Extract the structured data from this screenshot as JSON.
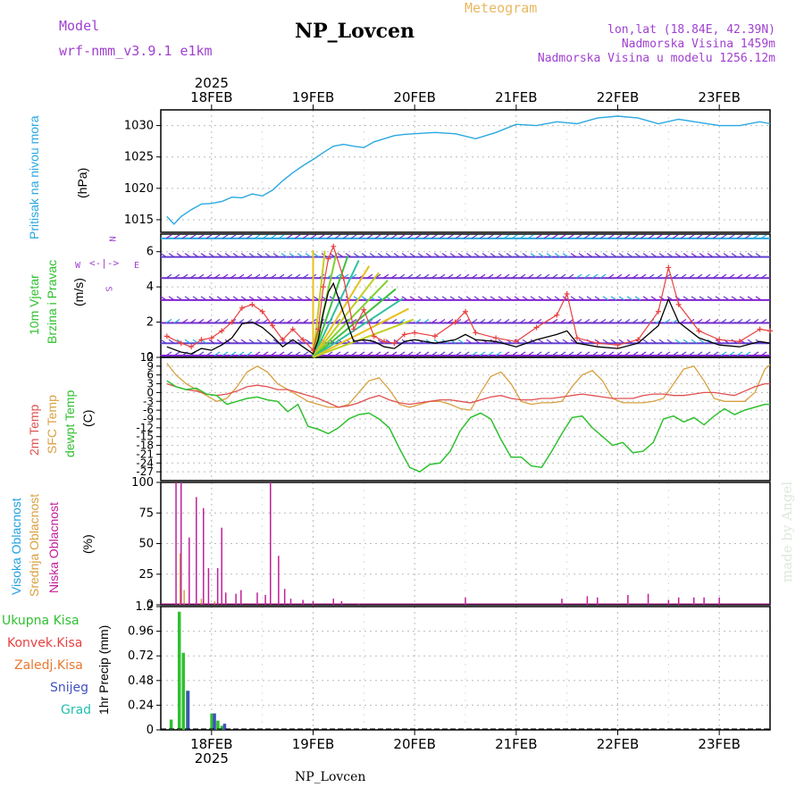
{
  "header": {
    "model_label": "Model",
    "model_name": "wrf-nmm_v3.9.1 e1km",
    "title": "NP_Lovcen",
    "subtitle": "Meteogram",
    "lonlat": "lon,lat (18.84E, 42.39N)",
    "altitude": "Nadmorska Visina 1459m",
    "model_altitude": "Nadmorska Visina u modelu 1256.12m",
    "footer": "NP_Lovcen",
    "credit": "made by Angel"
  },
  "colors": {
    "pressure": "#2aa8e0",
    "wind_speed": "#000000",
    "wind_gust": "#e84040",
    "temp_2m": "#e05050",
    "temp_sfc": "#d8a040",
    "dewpoint": "#30c030",
    "cloud_high": "#20a0e0",
    "cloud_mid": "#d8a040",
    "cloud_low": "#c0209a",
    "precip_total": "#30c030",
    "precip_conv": "#e84040",
    "precip_frozen": "#e87830",
    "precip_snow": "#4050c0",
    "precip_hail": "#20c0b0"
  },
  "time_axis": {
    "year": "2025",
    "days": [
      "18FEB",
      "19FEB",
      "20FEB",
      "21FEB",
      "22FEB",
      "23FEB"
    ]
  },
  "chart_data": [
    {
      "type": "line",
      "panel": "pressure",
      "ylabels": [
        "Pritisak na nivou mora",
        "(hPa)"
      ],
      "yticks": [
        "1015",
        "1020",
        "1025",
        "1030"
      ],
      "ylim": [
        1013,
        1032.5
      ],
      "x_days": [
        17.56,
        17.63,
        17.7,
        17.8,
        17.9,
        18.0,
        18.1,
        18.2,
        18.3,
        18.4,
        18.5,
        18.6,
        18.7,
        18.8,
        18.9,
        19.0,
        19.1,
        19.2,
        19.3,
        19.4,
        19.5,
        19.6,
        19.7,
        19.8,
        19.9,
        20.0,
        20.2,
        20.4,
        20.6,
        20.8,
        21.0,
        21.2,
        21.4,
        21.6,
        21.8,
        22.0,
        22.2,
        22.4,
        22.6,
        22.8,
        23.0,
        23.2,
        23.4,
        23.5
      ],
      "series": [
        {
          "values": [
            1015.5,
            1014.3,
            1015.5,
            1016.6,
            1017.5,
            1017.6,
            1017.9,
            1018.6,
            1018.5,
            1019.1,
            1018.8,
            1019.7,
            1021.2,
            1022.5,
            1023.6,
            1024.6,
            1025.7,
            1026.7,
            1027.0,
            1026.7,
            1026.5,
            1027.4,
            1027.9,
            1028.4,
            1028.6,
            1028.7,
            1028.9,
            1028.7,
            1027.9,
            1028.9,
            1030.2,
            1030.0,
            1030.6,
            1030.3,
            1031.2,
            1031.5,
            1031.2,
            1030.3,
            1031.0,
            1030.5,
            1030.0,
            1030.0,
            1030.6,
            1030.3
          ]
        }
      ],
      "grid": true
    },
    {
      "type": "line",
      "panel": "wind",
      "ylabels": [
        "10m Vjetar",
        "Brzina i Pravac",
        "(m/s)"
      ],
      "direction_legend": [
        "N",
        "W",
        "E",
        "S"
      ],
      "yticks": [
        "0",
        "2",
        "4",
        "6"
      ],
      "ylim": [
        0,
        7
      ],
      "x_days": [
        17.56,
        17.7,
        17.8,
        17.9,
        18.0,
        18.1,
        18.2,
        18.3,
        18.4,
        18.5,
        18.6,
        18.7,
        18.8,
        18.9,
        19.0,
        19.05,
        19.1,
        19.15,
        19.2,
        19.3,
        19.4,
        19.5,
        19.6,
        19.7,
        19.8,
        19.9,
        20.0,
        20.2,
        20.4,
        20.5,
        20.6,
        20.8,
        21.0,
        21.2,
        21.4,
        21.5,
        21.6,
        21.8,
        22.0,
        22.2,
        22.4,
        22.5,
        22.6,
        22.8,
        23.0,
        23.2,
        23.4,
        23.5
      ],
      "series": [
        {
          "name": "speed",
          "values": [
            0.6,
            0.3,
            0.2,
            0.5,
            0.4,
            0.7,
            1.1,
            1.9,
            2.0,
            1.7,
            1.2,
            0.6,
            1.0,
            0.6,
            0.2,
            1.0,
            2.5,
            3.7,
            4.2,
            2.5,
            0.9,
            1.0,
            0.9,
            0.6,
            0.5,
            0.9,
            1.0,
            0.8,
            1.0,
            1.3,
            1.0,
            0.9,
            0.6,
            1.0,
            1.3,
            1.5,
            0.8,
            0.6,
            0.5,
            0.8,
            1.8,
            3.3,
            2.0,
            1.1,
            0.7,
            0.6,
            0.9,
            0.8
          ]
        },
        {
          "name": "gust",
          "values": [
            1.2,
            0.8,
            0.6,
            1.0,
            1.1,
            1.5,
            2.0,
            2.8,
            3.0,
            2.6,
            1.8,
            1.0,
            1.6,
            1.0,
            0.4,
            1.6,
            4.0,
            5.6,
            6.3,
            4.5,
            1.6,
            2.7,
            1.2,
            0.9,
            0.8,
            1.3,
            1.4,
            1.2,
            2.0,
            2.6,
            1.4,
            1.1,
            0.9,
            1.7,
            2.4,
            3.6,
            1.1,
            0.8,
            0.7,
            1.0,
            2.6,
            5.1,
            3.0,
            1.5,
            1.0,
            0.9,
            1.6,
            1.5
          ]
        }
      ],
      "grid": true
    },
    {
      "type": "line",
      "panel": "temperature",
      "ylabels": [
        "2m Temp",
        "SFC Temp",
        "dewpt Temp",
        "(C)"
      ],
      "yticks": [
        "12",
        "9",
        "6",
        "3",
        "0",
        "-3",
        "-6",
        "-9",
        "-12",
        "-15",
        "-18",
        "-21",
        "-24",
        "-27"
      ],
      "ylim": [
        -30,
        12
      ],
      "x_days": [
        17.56,
        17.65,
        17.75,
        17.85,
        17.95,
        18.05,
        18.15,
        18.25,
        18.35,
        18.45,
        18.55,
        18.65,
        18.75,
        18.85,
        18.95,
        19.05,
        19.15,
        19.25,
        19.35,
        19.45,
        19.55,
        19.65,
        19.75,
        19.85,
        19.95,
        20.05,
        20.15,
        20.25,
        20.35,
        20.45,
        20.55,
        20.65,
        20.75,
        20.85,
        20.95,
        21.05,
        21.15,
        21.25,
        21.35,
        21.45,
        21.55,
        21.65,
        21.75,
        21.85,
        21.95,
        22.05,
        22.15,
        22.25,
        22.35,
        22.45,
        22.55,
        22.65,
        22.75,
        22.85,
        22.95,
        23.05,
        23.15,
        23.25,
        23.35,
        23.45,
        23.5
      ],
      "series": [
        {
          "name": "2m",
          "values": [
            3.0,
            2.0,
            1.0,
            0.5,
            -0.5,
            -1.0,
            -0.5,
            0.5,
            2.0,
            2.5,
            2.0,
            1.0,
            1.0,
            0.0,
            -1.0,
            -2.0,
            -3.5,
            -5.0,
            -4.5,
            -3.5,
            -2.0,
            -1.0,
            -2.5,
            -3.5,
            -4.0,
            -3.5,
            -3.0,
            -2.5,
            -2.5,
            -3.0,
            -3.5,
            -2.5,
            -1.5,
            -1.0,
            -2.0,
            -2.5,
            -2.5,
            -2.0,
            -2.0,
            -1.5,
            -1.0,
            -0.5,
            -1.0,
            -1.5,
            -2.0,
            -2.0,
            -2.0,
            -1.0,
            -0.5,
            -0.5,
            -1.0,
            -1.0,
            -0.5,
            0.0,
            0.0,
            -0.5,
            -1.0,
            0.5,
            2.0,
            3.0,
            3.0
          ]
        },
        {
          "name": "sfc",
          "values": [
            10.0,
            6.0,
            3.0,
            1.0,
            -1.0,
            -3.0,
            -2.0,
            2.0,
            7.0,
            9.0,
            7.0,
            3.0,
            1.0,
            -1.0,
            -3.0,
            -4.0,
            -5.0,
            -5.0,
            -4.0,
            0.0,
            4.0,
            5.0,
            1.0,
            -4.0,
            -5.0,
            -4.0,
            -3.0,
            -3.0,
            -4.0,
            -5.5,
            -6.0,
            0.0,
            5.5,
            7.0,
            3.0,
            -3.0,
            -4.0,
            -3.5,
            -3.5,
            -3.0,
            2.0,
            6.0,
            7.5,
            4.0,
            -2.0,
            -3.5,
            -3.5,
            -3.5,
            -3.0,
            -2.0,
            3.0,
            8.0,
            9.0,
            4.0,
            -2.0,
            -3.0,
            -3.0,
            -3.0,
            0.0,
            8.0,
            9.5
          ]
        },
        {
          "name": "dewpt",
          "values": [
            4.0,
            2.0,
            1.0,
            1.5,
            -0.5,
            -1.0,
            -4.0,
            -3.0,
            -2.0,
            -1.5,
            -2.5,
            -3.0,
            -6.5,
            -4.0,
            -11.5,
            -12.5,
            -14.0,
            -12.0,
            -9.0,
            -7.5,
            -7.0,
            -9.0,
            -12.0,
            -19.0,
            -25.5,
            -27.0,
            -24.5,
            -24.0,
            -20.0,
            -13.0,
            -8.5,
            -7.0,
            -9.0,
            -16.0,
            -22.0,
            -22.0,
            -25.0,
            -25.5,
            -20.0,
            -14.0,
            -8.5,
            -8.0,
            -12.0,
            -15.0,
            -18.0,
            -17.0,
            -20.5,
            -20.0,
            -17.0,
            -9.0,
            -8.0,
            -10.0,
            -8.5,
            -11.0,
            -8.0,
            -5.5,
            -7.5,
            -6.0,
            -5.0,
            -4.0,
            -4.0
          ]
        }
      ],
      "grid": true
    },
    {
      "type": "bar",
      "panel": "clouds",
      "ylabels": [
        "Visoka Oblacnost",
        "Srednja Oblacnost",
        "Niska Oblacnost",
        "(%)"
      ],
      "yticks": [
        "0",
        "25",
        "50",
        "75",
        "100"
      ],
      "ylim": [
        0,
        100
      ],
      "series": [
        {
          "name": "high",
          "x_days": [],
          "values": []
        },
        {
          "name": "mid",
          "x_days": [
            17.69,
            17.73,
            17.9,
            18.03
          ],
          "values": [
            42,
            12,
            5,
            3
          ]
        },
        {
          "name": "low",
          "x_days": [
            17.65,
            17.7,
            17.78,
            17.85,
            17.92,
            17.97,
            18.06,
            18.1,
            18.14,
            18.24,
            18.29,
            18.45,
            18.53,
            18.58,
            18.66,
            18.72,
            18.78,
            18.9,
            19.0,
            19.2,
            19.28,
            19.45,
            20.5,
            21.45,
            21.7,
            21.8,
            22.1,
            22.3,
            22.5,
            22.6,
            22.75,
            22.85,
            23.0
          ],
          "values": [
            100,
            100,
            55,
            88,
            79,
            30,
            30,
            63,
            10,
            9,
            12,
            10,
            8,
            100,
            40,
            13,
            5,
            4,
            3,
            5,
            3,
            1,
            6,
            5,
            7,
            6,
            8,
            9,
            4,
            6,
            6,
            6,
            6
          ]
        }
      ],
      "grid": true
    },
    {
      "type": "bar",
      "panel": "precip",
      "ylabels": [
        "1hr Precip (mm)"
      ],
      "legend": [
        "Ukupna Kisa",
        "Konvek.Kisa",
        "Zaledj.Kisa",
        "Snijeg",
        "Grad"
      ],
      "yticks": [
        "0",
        "0.24",
        "0.48",
        "0.72",
        "0.96",
        "1.2"
      ],
      "ylim": [
        0,
        1.2
      ],
      "series": [
        {
          "name": "Ukupna Kisa",
          "x_days": [
            17.6,
            17.68,
            17.72,
            17.76,
            18.0,
            18.06,
            18.1
          ],
          "values": [
            0.1,
            1.15,
            0.75,
            0.38,
            0.16,
            0.09,
            0.04
          ]
        },
        {
          "name": "Snijeg",
          "x_days": [
            17.74,
            18.0,
            18.1
          ],
          "values": [
            0.38,
            0.16,
            0.06
          ]
        }
      ],
      "grid": true
    }
  ]
}
